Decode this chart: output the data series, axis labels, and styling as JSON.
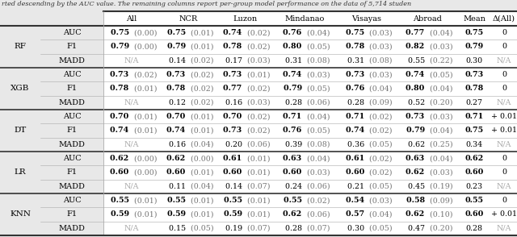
{
  "title": "rted descending by the AUC value. The remaining columns report per-group model performance on the data of 5,714 studen",
  "headers": [
    "All",
    "NCR",
    "Luzon",
    "Mindanao",
    "Visayas",
    "Abroad",
    "Mean",
    "Δ(All)"
  ],
  "rows": [
    {
      "model": "RF",
      "metric": "AUC",
      "vals": [
        "0.75 (0.00)",
        "0.75 (0.01)",
        "0.74 (0.02)",
        "0.76 (0.04)",
        "0.75 (0.03)",
        "0.77 (0.04)",
        "0.75",
        "0"
      ],
      "bold": [
        true,
        true,
        true,
        true,
        true,
        true,
        true,
        false
      ],
      "gray_val": [
        false,
        false,
        false,
        false,
        false,
        false,
        false,
        false
      ]
    },
    {
      "model": "RF",
      "metric": "F1",
      "vals": [
        "0.79 (0.00)",
        "0.79 (0.01)",
        "0.78 (0.02)",
        "0.80 (0.05)",
        "0.78 (0.03)",
        "0.82 (0.03)",
        "0.79",
        "0"
      ],
      "bold": [
        true,
        true,
        true,
        true,
        true,
        true,
        true,
        false
      ],
      "gray_val": [
        false,
        false,
        false,
        false,
        false,
        false,
        false,
        false
      ]
    },
    {
      "model": "RF",
      "metric": "MADD",
      "vals": [
        "N/A",
        "0.14 (0.02)",
        "0.17 (0.03)",
        "0.31 (0.08)",
        "0.31 (0.08)",
        "0.55 (0.22)",
        "0.30",
        "N/A"
      ],
      "bold": [
        false,
        false,
        false,
        false,
        false,
        false,
        false,
        false
      ],
      "gray_val": [
        true,
        false,
        false,
        false,
        false,
        false,
        false,
        true
      ]
    },
    {
      "model": "XGB",
      "metric": "AUC",
      "vals": [
        "0.73 (0.02)",
        "0.73 (0.02)",
        "0.73 (0.01)",
        "0.74 (0.03)",
        "0.73 (0.03)",
        "0.74 (0.05)",
        "0.73",
        "0"
      ],
      "bold": [
        true,
        true,
        true,
        true,
        true,
        true,
        true,
        false
      ],
      "gray_val": [
        false,
        false,
        false,
        false,
        false,
        false,
        false,
        false
      ]
    },
    {
      "model": "XGB",
      "metric": "F1",
      "vals": [
        "0.78 (0.01)",
        "0.78 (0.02)",
        "0.77 (0.02)",
        "0.79 (0.05)",
        "0.76 (0.04)",
        "0.80 (0.04)",
        "0.78",
        "0"
      ],
      "bold": [
        true,
        true,
        true,
        true,
        true,
        true,
        true,
        false
      ],
      "gray_val": [
        false,
        false,
        false,
        false,
        false,
        false,
        false,
        false
      ]
    },
    {
      "model": "XGB",
      "metric": "MADD",
      "vals": [
        "N/A",
        "0.12 (0.02)",
        "0.16 (0.03)",
        "0.28 (0.06)",
        "0.28 (0.09)",
        "0.52 (0.20)",
        "0.27",
        "N/A"
      ],
      "bold": [
        false,
        false,
        false,
        false,
        false,
        false,
        false,
        false
      ],
      "gray_val": [
        true,
        false,
        false,
        false,
        false,
        false,
        false,
        true
      ]
    },
    {
      "model": "DT",
      "metric": "AUC",
      "vals": [
        "0.70 (0.01)",
        "0.70 (0.01)",
        "0.70 (0.02)",
        "0.71 (0.04)",
        "0.71 (0.02)",
        "0.73 (0.03)",
        "0.71",
        "+ 0.01"
      ],
      "bold": [
        true,
        true,
        true,
        true,
        true,
        true,
        true,
        false
      ],
      "gray_val": [
        false,
        false,
        false,
        false,
        false,
        false,
        false,
        false
      ]
    },
    {
      "model": "DT",
      "metric": "F1",
      "vals": [
        "0.74 (0.01)",
        "0.74 (0.01)",
        "0.73 (0.02)",
        "0.76 (0.05)",
        "0.74 (0.02)",
        "0.79 (0.04)",
        "0.75",
        "+ 0.01"
      ],
      "bold": [
        true,
        true,
        true,
        true,
        true,
        true,
        true,
        false
      ],
      "gray_val": [
        false,
        false,
        false,
        false,
        false,
        false,
        false,
        false
      ]
    },
    {
      "model": "DT",
      "metric": "MADD",
      "vals": [
        "N/A",
        "0.16 (0.04)",
        "0.20 (0.06)",
        "0.39 (0.08)",
        "0.36 (0.05)",
        "0.62 (0.25)",
        "0.34",
        "N/A"
      ],
      "bold": [
        false,
        false,
        false,
        false,
        false,
        false,
        false,
        false
      ],
      "gray_val": [
        true,
        false,
        false,
        false,
        false,
        false,
        false,
        true
      ]
    },
    {
      "model": "LR",
      "metric": "AUC",
      "vals": [
        "0.62 (0.00)",
        "0.62 (0.00)",
        "0.61 (0.01)",
        "0.63 (0.04)",
        "0.61 (0.02)",
        "0.63 (0.04)",
        "0.62",
        "0"
      ],
      "bold": [
        true,
        true,
        true,
        true,
        true,
        true,
        true,
        false
      ],
      "gray_val": [
        false,
        false,
        false,
        false,
        false,
        false,
        false,
        false
      ]
    },
    {
      "model": "LR",
      "metric": "F1",
      "vals": [
        "0.60 (0.00)",
        "0.60 (0.01)",
        "0.60 (0.01)",
        "0.60 (0.03)",
        "0.60 (0.02)",
        "0.62 (0.03)",
        "0.60",
        "0"
      ],
      "bold": [
        true,
        true,
        true,
        true,
        true,
        true,
        true,
        false
      ],
      "gray_val": [
        false,
        false,
        false,
        false,
        false,
        false,
        false,
        false
      ]
    },
    {
      "model": "LR",
      "metric": "MADD",
      "vals": [
        "N/A",
        "0.11 (0.04)",
        "0.14 (0.07)",
        "0.24 (0.06)",
        "0.21 (0.05)",
        "0.45 (0.19)",
        "0.23",
        "N/A"
      ],
      "bold": [
        false,
        false,
        false,
        false,
        false,
        false,
        false,
        false
      ],
      "gray_val": [
        true,
        false,
        false,
        false,
        false,
        false,
        false,
        true
      ]
    },
    {
      "model": "KNN",
      "metric": "AUC",
      "vals": [
        "0.55 (0.01)",
        "0.55 (0.01)",
        "0.55 (0.01)",
        "0.55 (0.02)",
        "0.54 (0.03)",
        "0.58 (0.09)",
        "0.55",
        "0"
      ],
      "bold": [
        true,
        true,
        true,
        true,
        true,
        true,
        true,
        false
      ],
      "gray_val": [
        false,
        false,
        false,
        false,
        false,
        false,
        false,
        false
      ]
    },
    {
      "model": "KNN",
      "metric": "F1",
      "vals": [
        "0.59 (0.01)",
        "0.59 (0.01)",
        "0.59 (0.01)",
        "0.62 (0.06)",
        "0.57 (0.04)",
        "0.62 (0.10)",
        "0.60",
        "+ 0.01"
      ],
      "bold": [
        true,
        true,
        true,
        true,
        true,
        true,
        true,
        false
      ],
      "gray_val": [
        false,
        false,
        false,
        false,
        false,
        false,
        false,
        false
      ]
    },
    {
      "model": "KNN",
      "metric": "MADD",
      "vals": [
        "N/A",
        "0.15 (0.05)",
        "0.19 (0.07)",
        "0.28 (0.07)",
        "0.30 (0.05)",
        "0.47 (0.20)",
        "0.28",
        "N/A"
      ],
      "bold": [
        false,
        false,
        false,
        false,
        false,
        false,
        false,
        false
      ],
      "gray_val": [
        true,
        false,
        false,
        false,
        false,
        false,
        false,
        true
      ]
    }
  ],
  "model_groups": [
    {
      "name": "RF",
      "rows": [
        0,
        1,
        2
      ]
    },
    {
      "name": "XGB",
      "rows": [
        3,
        4,
        5
      ]
    },
    {
      "name": "DT",
      "rows": [
        6,
        7,
        8
      ]
    },
    {
      "name": "LR",
      "rows": [
        9,
        10,
        11
      ]
    },
    {
      "name": "KNN",
      "rows": [
        12,
        13,
        14
      ]
    }
  ],
  "group_end_rows": [
    2,
    5,
    8,
    11,
    14
  ],
  "bg_color": "#e8e8e8",
  "cell_bg": "#ffffff",
  "bold_color": "#000000",
  "gray_color": "#aaaaaa",
  "std_color": "#777777",
  "divider_thick": "#333333",
  "divider_thin": "#aaaaaa",
  "title_color": "#333333",
  "fs_title": 5.8,
  "fs_header": 7.0,
  "fs_model": 7.5,
  "fs_metric": 7.0,
  "fs_data": 6.8
}
